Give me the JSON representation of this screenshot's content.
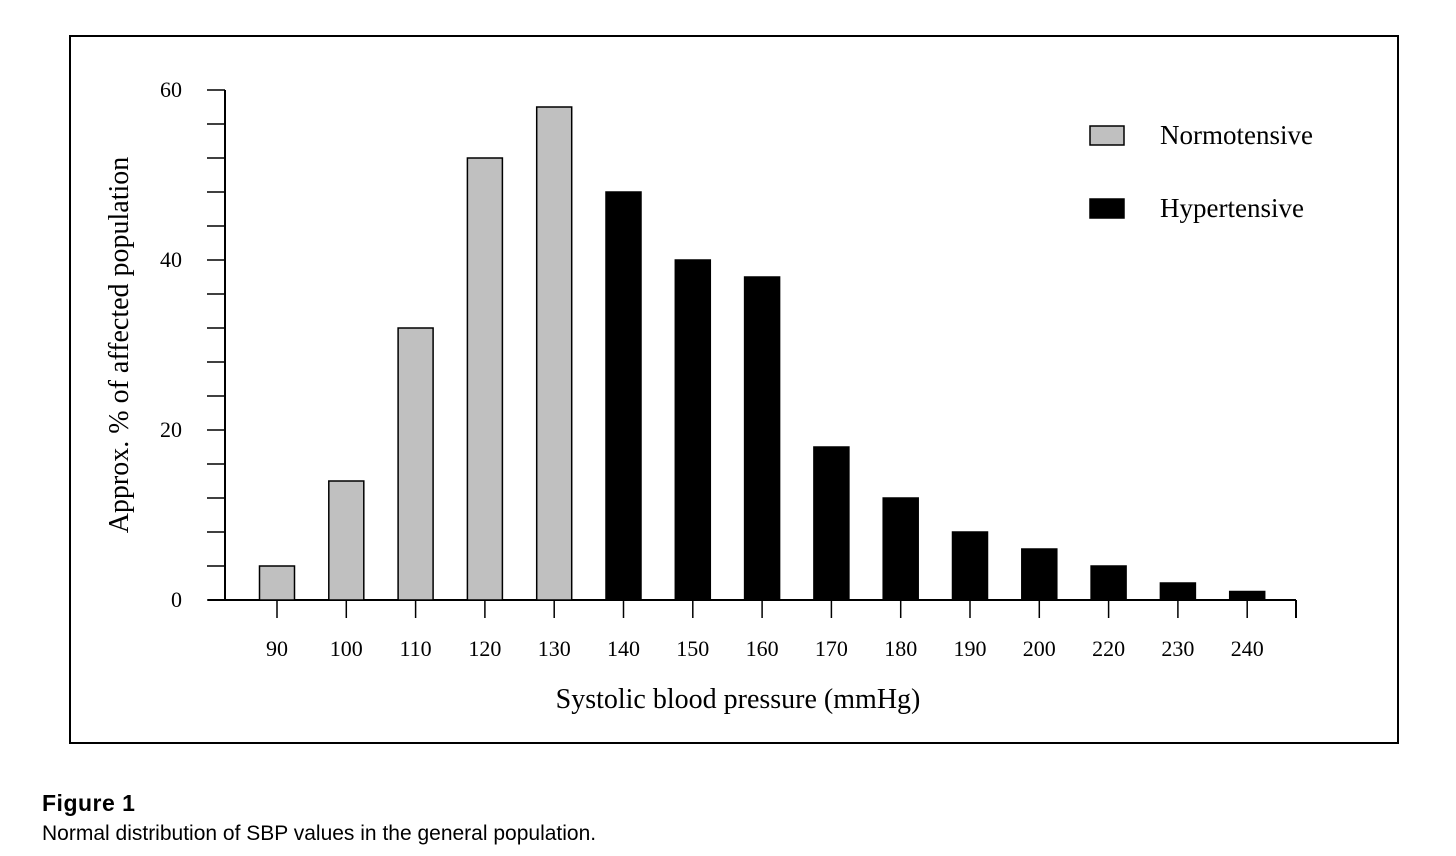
{
  "chart_data": {
    "type": "bar",
    "title": "",
    "xlabel": "Systolic blood pressure (mmHg)",
    "ylabel": "Approx. % of affected population",
    "categories": [
      "90",
      "100",
      "110",
      "120",
      "130",
      "140",
      "150",
      "160",
      "170",
      "180",
      "190",
      "200",
      "220",
      "230",
      "240"
    ],
    "values": [
      4,
      14,
      32,
      52,
      58,
      48,
      40,
      38,
      18,
      12,
      8,
      6,
      4,
      2,
      1
    ],
    "groups": [
      "Normotensive",
      "Normotensive",
      "Normotensive",
      "Normotensive",
      "Normotensive",
      "Hypertensive",
      "Hypertensive",
      "Hypertensive",
      "Hypertensive",
      "Hypertensive",
      "Hypertensive",
      "Hypertensive",
      "Hypertensive",
      "Hypertensive",
      "Hypertensive"
    ],
    "ylim": [
      0,
      60
    ],
    "y_major_ticks": [
      0,
      20,
      40,
      60
    ],
    "y_minor_step": 4,
    "grid": false,
    "legend_position": "top-right",
    "legend": [
      {
        "name": "Normotensive",
        "color": "#c0c0c0"
      },
      {
        "name": "Hypertensive",
        "color": "#000000"
      }
    ]
  },
  "figure": {
    "label": "Figure 1",
    "caption": "Normal distribution of SBP values in the general population."
  }
}
